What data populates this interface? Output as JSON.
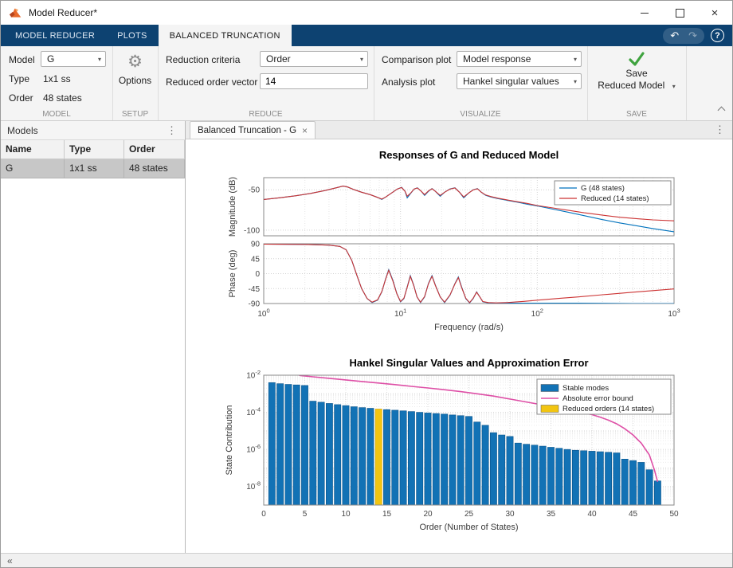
{
  "window": {
    "title": "Model Reducer*",
    "close_glyph": "×"
  },
  "icons": {
    "caret": "▾",
    "menu_dots": "⋮",
    "gear": "⚙",
    "undo": "↶",
    "redo": "↷",
    "help": "?",
    "collapse_left": "«",
    "tab_close": "×"
  },
  "ribbon": {
    "tabs": [
      {
        "label": "MODEL REDUCER"
      },
      {
        "label": "PLOTS"
      },
      {
        "label": "BALANCED TRUNCATION"
      }
    ],
    "model": {
      "section_label": "MODEL",
      "model_label": "Model",
      "model_value": "G",
      "type_label": "Type",
      "type_value": "1x1 ss",
      "order_label": "Order",
      "order_value": "48 states"
    },
    "setup": {
      "section_label": "SETUP",
      "options_label": "Options"
    },
    "reduce": {
      "section_label": "REDUCE",
      "criteria_label": "Reduction criteria",
      "criteria_value": "Order",
      "vector_label": "Reduced order vector",
      "vector_value": "14"
    },
    "visualize": {
      "section_label": "VISUALIZE",
      "comparison_label": "Comparison plot",
      "comparison_value": "Model response",
      "analysis_label": "Analysis plot",
      "analysis_value": "Hankel singular values"
    },
    "save": {
      "section_label": "SAVE",
      "line1": "Save",
      "line2": "Reduced Model"
    }
  },
  "models_panel": {
    "title": "Models",
    "columns": [
      "Name",
      "Type",
      "Order"
    ],
    "rows": [
      [
        "G",
        "1x1 ss",
        "48 states"
      ]
    ]
  },
  "document": {
    "tab_label": "Balanced Truncation - G"
  },
  "chart_data": [
    {
      "type": "line",
      "name": "bode",
      "title": "Responses of G and Reduced Model",
      "xlabel": "Frequency (rad/s)",
      "x_decades": [
        0,
        1,
        2,
        3
      ],
      "mag": {
        "ylabel": "Magnitude (dB)",
        "ylim": [
          -107,
          -35
        ],
        "yticks": [
          -50,
          -100
        ]
      },
      "phase": {
        "ylabel": "Phase (deg)",
        "ylim": [
          -90,
          90
        ],
        "yticks": [
          90,
          45,
          0,
          -45,
          -90
        ]
      },
      "legend": [
        {
          "label": "G (48 states)",
          "color": "#0072BD"
        },
        {
          "label": "Reduced (14 states)",
          "color": "#CC3333"
        }
      ],
      "series": {
        "g_mag": [
          [
            1,
            -62
          ],
          [
            1.3,
            -60
          ],
          [
            1.7,
            -57.5
          ],
          [
            2.2,
            -54.5
          ],
          [
            2.8,
            -51
          ],
          [
            3.4,
            -47.5
          ],
          [
            3.8,
            -45.5
          ],
          [
            4.1,
            -46.5
          ],
          [
            4.6,
            -50
          ],
          [
            5.2,
            -53
          ],
          [
            6,
            -56
          ],
          [
            6.8,
            -59.5
          ],
          [
            7.3,
            -62
          ],
          [
            7.8,
            -59
          ],
          [
            8.6,
            -54
          ],
          [
            9.5,
            -49
          ],
          [
            10.2,
            -47
          ],
          [
            10.8,
            -52
          ],
          [
            11.2,
            -60
          ],
          [
            11.8,
            -55
          ],
          [
            12.6,
            -49
          ],
          [
            13.3,
            -47.5
          ],
          [
            14.2,
            -52
          ],
          [
            15,
            -57
          ],
          [
            16,
            -52
          ],
          [
            17,
            -48.5
          ],
          [
            18,
            -52
          ],
          [
            19.5,
            -58
          ],
          [
            21,
            -53
          ],
          [
            23,
            -49
          ],
          [
            25,
            -47.5
          ],
          [
            27,
            -53
          ],
          [
            29,
            -60
          ],
          [
            31.5,
            -54
          ],
          [
            34,
            -50
          ],
          [
            36.5,
            -48.5
          ],
          [
            39,
            -53
          ],
          [
            42,
            -57
          ],
          [
            46,
            -59
          ],
          [
            52,
            -61
          ],
          [
            60,
            -63
          ],
          [
            70,
            -65
          ],
          [
            85,
            -68
          ],
          [
            100,
            -70
          ],
          [
            130,
            -74
          ],
          [
            170,
            -78
          ],
          [
            220,
            -82
          ],
          [
            300,
            -87
          ],
          [
            400,
            -91
          ],
          [
            550,
            -95
          ],
          [
            700,
            -98
          ],
          [
            1000,
            -102
          ]
        ],
        "reduced_mag": [
          [
            1,
            -62
          ],
          [
            1.3,
            -60
          ],
          [
            1.7,
            -57.5
          ],
          [
            2.2,
            -54.5
          ],
          [
            2.8,
            -51
          ],
          [
            3.4,
            -47.5
          ],
          [
            3.8,
            -45.5
          ],
          [
            4.1,
            -46.5
          ],
          [
            4.6,
            -50
          ],
          [
            5.2,
            -53
          ],
          [
            6,
            -56
          ],
          [
            6.8,
            -59.5
          ],
          [
            7.3,
            -61.5
          ],
          [
            7.8,
            -59
          ],
          [
            8.6,
            -54
          ],
          [
            9.5,
            -49
          ],
          [
            10.2,
            -47.2
          ],
          [
            10.8,
            -52
          ],
          [
            11.2,
            -58
          ],
          [
            11.8,
            -54.5
          ],
          [
            12.6,
            -49
          ],
          [
            13.3,
            -47.8
          ],
          [
            14.2,
            -52
          ],
          [
            15,
            -56
          ],
          [
            16,
            -51.5
          ],
          [
            17,
            -48.7
          ],
          [
            18,
            -52
          ],
          [
            19.5,
            -57
          ],
          [
            21,
            -53
          ],
          [
            23,
            -49.2
          ],
          [
            25,
            -47.8
          ],
          [
            27,
            -53
          ],
          [
            29,
            -59
          ],
          [
            31.5,
            -54
          ],
          [
            34,
            -50.2
          ],
          [
            36.5,
            -48.8
          ],
          [
            39,
            -53
          ],
          [
            42,
            -56.5
          ],
          [
            46,
            -58.5
          ],
          [
            52,
            -60.5
          ],
          [
            60,
            -62.5
          ],
          [
            70,
            -64.5
          ],
          [
            85,
            -67
          ],
          [
            100,
            -69.5
          ],
          [
            130,
            -72.5
          ],
          [
            170,
            -75.5
          ],
          [
            220,
            -78.5
          ],
          [
            300,
            -81.5
          ],
          [
            400,
            -84
          ],
          [
            550,
            -86
          ],
          [
            700,
            -87.3
          ],
          [
            1000,
            -88.5
          ]
        ],
        "g_phase": [
          [
            1,
            89
          ],
          [
            2,
            88
          ],
          [
            3,
            86
          ],
          [
            3.6,
            82
          ],
          [
            4,
            72
          ],
          [
            4.4,
            40
          ],
          [
            4.8,
            -5
          ],
          [
            5.2,
            -45
          ],
          [
            5.7,
            -75
          ],
          [
            6.2,
            -87
          ],
          [
            6.8,
            -80
          ],
          [
            7.3,
            -55
          ],
          [
            7.8,
            -15
          ],
          [
            8.2,
            12
          ],
          [
            8.8,
            -20
          ],
          [
            9.4,
            -60
          ],
          [
            10,
            -85
          ],
          [
            10.6,
            -75
          ],
          [
            11.2,
            -40
          ],
          [
            11.8,
            -6
          ],
          [
            12.5,
            -35
          ],
          [
            13.2,
            -70
          ],
          [
            14,
            -87
          ],
          [
            15,
            -70
          ],
          [
            16,
            -30
          ],
          [
            17,
            -6
          ],
          [
            18,
            -35
          ],
          [
            19.5,
            -70
          ],
          [
            21,
            -87
          ],
          [
            23,
            -65
          ],
          [
            25,
            -30
          ],
          [
            26.5,
            -10
          ],
          [
            28,
            -40
          ],
          [
            30,
            -75
          ],
          [
            32,
            -88
          ],
          [
            34,
            -75
          ],
          [
            36,
            -55
          ],
          [
            38,
            -70
          ],
          [
            40,
            -85
          ],
          [
            44,
            -88
          ],
          [
            50,
            -89
          ],
          [
            60,
            -89
          ],
          [
            80,
            -89
          ],
          [
            100,
            -89
          ],
          [
            200,
            -89
          ],
          [
            500,
            -90
          ],
          [
            1000,
            -90
          ]
        ],
        "reduced_phase": [
          [
            1,
            89
          ],
          [
            2,
            88
          ],
          [
            3,
            86
          ],
          [
            3.6,
            82
          ],
          [
            4,
            72
          ],
          [
            4.4,
            40
          ],
          [
            4.8,
            -5
          ],
          [
            5.2,
            -45
          ],
          [
            5.7,
            -75
          ],
          [
            6.2,
            -86
          ],
          [
            6.8,
            -79
          ],
          [
            7.3,
            -54
          ],
          [
            7.8,
            -16
          ],
          [
            8.2,
            10
          ],
          [
            8.8,
            -22
          ],
          [
            9.4,
            -61
          ],
          [
            10,
            -84
          ],
          [
            10.6,
            -74
          ],
          [
            11.2,
            -41
          ],
          [
            11.8,
            -8
          ],
          [
            12.5,
            -36
          ],
          [
            13.2,
            -70
          ],
          [
            14,
            -86
          ],
          [
            15,
            -69
          ],
          [
            16,
            -31
          ],
          [
            17,
            -8
          ],
          [
            18,
            -36
          ],
          [
            19.5,
            -70
          ],
          [
            21,
            -86
          ],
          [
            23,
            -64
          ],
          [
            25,
            -31
          ],
          [
            26.5,
            -12
          ],
          [
            28,
            -42
          ],
          [
            30,
            -74
          ],
          [
            32,
            -87
          ],
          [
            34,
            -74
          ],
          [
            36,
            -56
          ],
          [
            38,
            -70
          ],
          [
            40,
            -84
          ],
          [
            44,
            -87
          ],
          [
            50,
            -88
          ],
          [
            60,
            -87
          ],
          [
            80,
            -83.5
          ],
          [
            100,
            -80
          ],
          [
            150,
            -74
          ],
          [
            200,
            -70
          ],
          [
            300,
            -63.5
          ],
          [
            500,
            -56
          ],
          [
            700,
            -51
          ],
          [
            1000,
            -46
          ]
        ]
      }
    },
    {
      "type": "bar",
      "name": "hankel",
      "title": "Hankel Singular Values and Approximation Error",
      "xlabel": "Order (Number of States)",
      "ylabel": "State Contribution",
      "xlim": [
        0,
        50
      ],
      "xticks": [
        0,
        5,
        10,
        15,
        20,
        25,
        30,
        35,
        40,
        45,
        50
      ],
      "ytick_exponents": [
        -2,
        -4,
        -6,
        -8
      ],
      "ylim_exponents": [
        -9,
        -2
      ],
      "reduced_order": 14,
      "colors": {
        "bar": "#1272B5",
        "bar_edge": "#0A548B",
        "reduced": "#F2C511",
        "reduced_edge": "#C79F0A",
        "error": "#DE4FA6"
      },
      "bar_values": [
        0.004,
        0.0035,
        0.0032,
        0.003,
        0.0028,
        0.0004,
        0.00035,
        0.0003,
        0.00026,
        0.00023,
        0.0002,
        0.00018,
        0.000165,
        0.00015,
        0.00014,
        0.00013,
        0.00012,
        0.00011,
        0.0001,
        9.2e-05,
        8.6e-05,
        8e-05,
        7.2e-05,
        6.6e-05,
        6e-05,
        3e-05,
        2e-05,
        8e-06,
        6e-06,
        5e-06,
        2.2e-06,
        1.9e-06,
        1.7e-06,
        1.5e-06,
        1.3e-06,
        1.15e-06,
        1e-06,
        9e-07,
        8.5e-07,
        8e-07,
        7.5e-07,
        7e-07,
        6.5e-07,
        3e-07,
        2.5e-07,
        2e-07,
        8e-08,
        2e-08
      ],
      "error_bound": [
        [
          4,
          0.011
        ],
        [
          4.5,
          0.0095
        ],
        [
          6,
          0.0082
        ],
        [
          8,
          0.0068
        ],
        [
          10,
          0.0056
        ],
        [
          12,
          0.0046
        ],
        [
          14,
          0.0038
        ],
        [
          16,
          0.0031
        ],
        [
          18,
          0.0025
        ],
        [
          20,
          0.00205
        ],
        [
          22,
          0.00165
        ],
        [
          24,
          0.0013
        ],
        [
          26,
          0.001
        ],
        [
          28,
          0.00075
        ],
        [
          30,
          0.00052
        ],
        [
          32,
          0.00036
        ],
        [
          34,
          0.00025
        ],
        [
          36,
          0.00017
        ],
        [
          38,
          0.000115
        ],
        [
          40,
          7.5e-05
        ],
        [
          41,
          5.5e-05
        ],
        [
          42,
          3.8e-05
        ],
        [
          43,
          2.4e-05
        ],
        [
          44,
          1.3e-05
        ],
        [
          45,
          6e-06
        ],
        [
          46,
          2.2e-06
        ],
        [
          47,
          5e-07
        ],
        [
          47.6,
          8e-08
        ],
        [
          48,
          1.8e-08
        ]
      ],
      "legend": [
        {
          "label": "Stable modes",
          "type": "box",
          "color": "#1272B5"
        },
        {
          "label": "Absolute error bound",
          "type": "line",
          "color": "#DE4FA6"
        },
        {
          "label": "Reduced orders (14 states)",
          "type": "box",
          "color": "#F2C511"
        }
      ]
    }
  ]
}
